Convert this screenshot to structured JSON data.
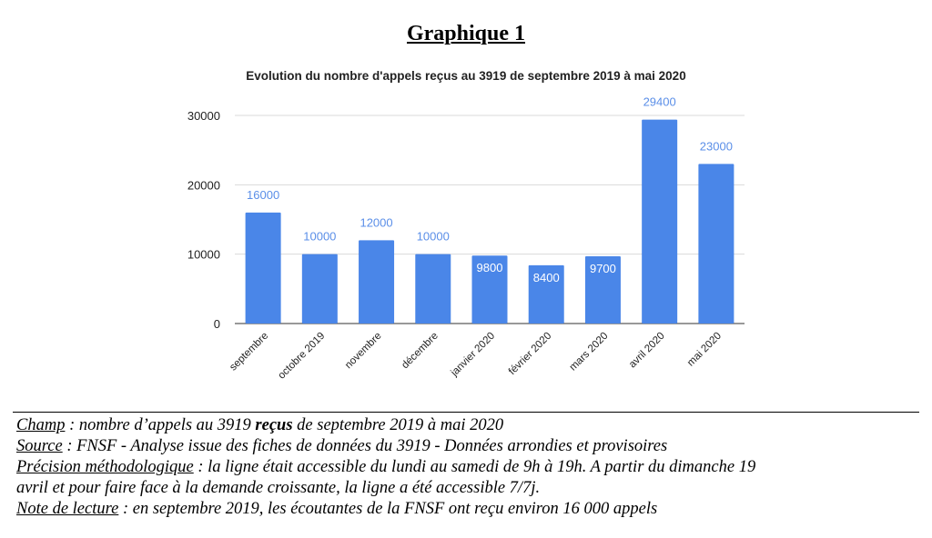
{
  "page": {
    "heading": "Graphique 1"
  },
  "chart_data": {
    "type": "bar",
    "title": "Evolution du nombre d'appels reçus au 3919 de septembre 2019 à mai 2020",
    "categories": [
      "septembre",
      "octobre 2019",
      "novembre",
      "décembre",
      "janvier 2020",
      "février 2020",
      "mars 2020",
      "avril 2020",
      "mai 2020"
    ],
    "values": [
      16000,
      10000,
      12000,
      10000,
      9800,
      8400,
      9700,
      29400,
      23000
    ],
    "data_labels": [
      "16000",
      "10000",
      "12000",
      "10000",
      "9800",
      "8400",
      "9700",
      "29400",
      "23000"
    ],
    "label_inside": [
      false,
      false,
      false,
      false,
      true,
      true,
      true,
      false,
      false
    ],
    "yticks": [
      0,
      10000,
      20000,
      30000
    ],
    "ytick_labels": [
      "0",
      "10000",
      "20000",
      "30000"
    ],
    "ylim": [
      0,
      30000
    ],
    "grid": true,
    "bar_color": "#4a86e8",
    "label_color": "#5b8fe8",
    "xlabel": "",
    "ylabel": ""
  },
  "notes": {
    "champ_label": "Champ",
    "champ_text_1": " : nombre d’appels au 3919 ",
    "champ_bold": "reçus",
    "champ_text_2": " de septembre 2019 à mai 2020",
    "source_label": "Source",
    "source_text": " : FNSF - Analyse issue des fiches de données du 3919 - Données arrondies et provisoires",
    "precision_label": "Précision méthodologique",
    "precision_text_1": " : la ligne était accessible du lundi au samedi de 9h à 19h. A partir du dimanche 19",
    "precision_text_2": "avril et pour faire face à la demande croissante, la ligne a été accessible 7/7j.",
    "lecture_label": "Note de lecture",
    "lecture_text": " : en septembre 2019, les écoutantes de la FNSF ont reçu environ 16 000 appels"
  }
}
